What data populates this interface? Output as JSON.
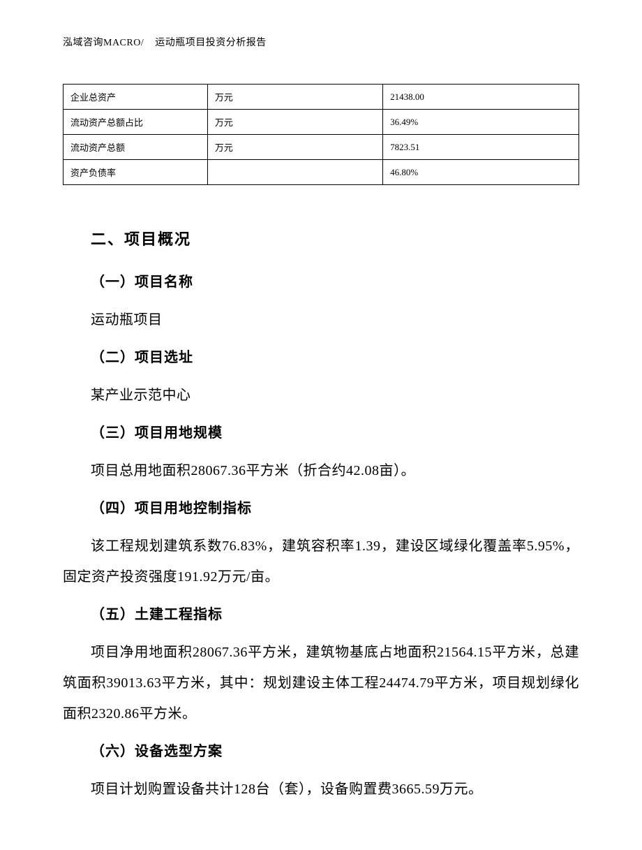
{
  "header": {
    "company": "泓域咨询MACRO/",
    "title": "运动瓶项目投资分析报告"
  },
  "table": {
    "rows": [
      {
        "label": "企业总资产",
        "unit": "万元",
        "value": "21438.00"
      },
      {
        "label": "流动资产总额占比",
        "unit": "万元",
        "value": "36.49%"
      },
      {
        "label": "流动资产总额",
        "unit": "万元",
        "value": "7823.51"
      },
      {
        "label": "资产负债率",
        "unit": "",
        "value": "46.80%"
      }
    ]
  },
  "section": {
    "title": "二、项目概况",
    "subsections": [
      {
        "title": "（一）项目名称",
        "content": "运动瓶项目"
      },
      {
        "title": "（二）项目选址",
        "content": "某产业示范中心"
      },
      {
        "title": "（三）项目用地规模",
        "content": "项目总用地面积28067.36平方米（折合约42.08亩）。"
      },
      {
        "title": "（四）项目用地控制指标",
        "content": "该工程规划建筑系数76.83%，建筑容积率1.39，建设区域绿化覆盖率5.95%，固定资产投资强度191.92万元/亩。"
      },
      {
        "title": "（五）土建工程指标",
        "content": "项目净用地面积28067.36平方米，建筑物基底占地面积21564.15平方米，总建筑面积39013.63平方米，其中：规划建设主体工程24474.79平方米，项目规划绿化面积2320.86平方米。"
      },
      {
        "title": "（六）设备选型方案",
        "content": "项目计划购置设备共计128台（套），设备购置费3665.59万元。"
      }
    ]
  }
}
